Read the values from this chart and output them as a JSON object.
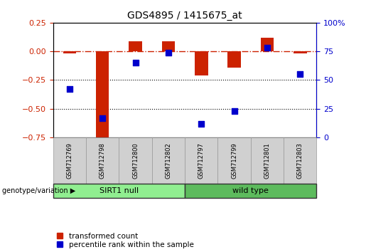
{
  "title": "GDS4895 / 1415675_at",
  "samples": [
    "GSM712769",
    "GSM712798",
    "GSM712800",
    "GSM712802",
    "GSM712797",
    "GSM712799",
    "GSM712801",
    "GSM712803"
  ],
  "groups": [
    {
      "label": "SIRT1 null",
      "start": 0,
      "end": 3,
      "color": "#90EE90"
    },
    {
      "label": "wild type",
      "start": 4,
      "end": 7,
      "color": "#5DBB5D"
    }
  ],
  "transformed_count": [
    -0.02,
    -0.78,
    0.09,
    0.09,
    -0.21,
    -0.14,
    0.12,
    -0.02
  ],
  "percentile_rank_pct": [
    42,
    17,
    65,
    74,
    12,
    23,
    78,
    55
  ],
  "ylim_left": [
    -0.75,
    0.25
  ],
  "ylim_right": [
    0,
    100
  ],
  "yticks_left": [
    0.25,
    0.0,
    -0.25,
    -0.5,
    -0.75
  ],
  "yticks_right": [
    100,
    75,
    50,
    25,
    0
  ],
  "bar_color": "#CC2200",
  "dot_color": "#0000CC",
  "hline_color": "#CC2200",
  "grid_color": "#000000",
  "legend_label_bar": "transformed count",
  "legend_label_dot": "percentile rank within the sample",
  "genotype_label": "genotype/variation",
  "background_color": "#ffffff",
  "bar_width": 0.4,
  "dot_size": 28
}
